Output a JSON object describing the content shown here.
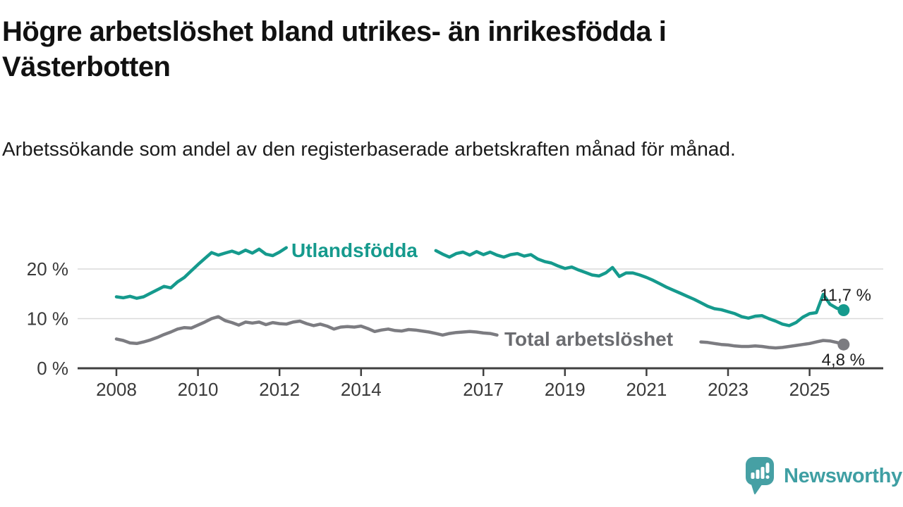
{
  "title": "Högre arbetslöshet bland utrikes- än inrikesfödda i Västerbotten",
  "subtitle": "Arbetssökande som andel av den registerbaserade arbetskraften månad för månad.",
  "branding": {
    "logo_text": "Newsworthy",
    "logo_icon": "speech-bubble-bar-chart-icon",
    "brand_color": "#3f9fa3"
  },
  "chart_data": {
    "type": "line",
    "title": "Högre arbetslöshet bland utrikes- än inrikesfödda i Västerbotten",
    "subtitle": "Arbetssökande som andel av den registerbaserade arbetskraften månad för månad.",
    "unit": "%",
    "x_start_year": 2008,
    "x_step_years": 0.1666667,
    "x_axis": {
      "ticks": [
        2008,
        2010,
        2012,
        2014,
        2017,
        2019,
        2021,
        2023,
        2025
      ],
      "range_years": [
        2007.05,
        2026.9
      ],
      "grid": false
    },
    "y_axis": {
      "tick_values": [
        0,
        10,
        20
      ],
      "tick_labels": [
        "0 %",
        "10 %",
        "20 %"
      ],
      "gridline_values": [
        10,
        20
      ],
      "range": [
        0,
        27.4
      ],
      "grid": true
    },
    "legend_position": "inline-labels-on-lines",
    "colors": {
      "axis": "#3f3f3f",
      "grid": "#dadada",
      "tick_text": "#3a3a3a",
      "value_label_text": "#1e1e1e"
    },
    "series": [
      {
        "id": "utlandsfodda",
        "name": "Utlandsfödda",
        "color": "#159a8d",
        "label_color": "#159a8d",
        "end_value": 11.7,
        "end_label": "11,7 %",
        "values": [
          14.4,
          14.2,
          14.5,
          14.1,
          14.4,
          15.1,
          15.8,
          16.5,
          16.2,
          17.4,
          18.3,
          19.6,
          20.9,
          22.1,
          23.3,
          22.8,
          23.2,
          23.6,
          23.1,
          23.8,
          23.2,
          24.0,
          23.0,
          22.7,
          23.4,
          24.3,
          null,
          null,
          null,
          null,
          null,
          null,
          null,
          null,
          null,
          null,
          null,
          null,
          null,
          null,
          null,
          null,
          null,
          null,
          null,
          null,
          null,
          23.7,
          23.0,
          22.4,
          23.1,
          23.4,
          22.8,
          23.5,
          22.9,
          23.4,
          22.8,
          22.4,
          22.9,
          23.1,
          22.6,
          22.9,
          22.0,
          21.5,
          21.2,
          20.6,
          20.1,
          20.4,
          19.8,
          19.3,
          18.8,
          18.6,
          19.2,
          20.3,
          18.5,
          19.2,
          19.2,
          18.8,
          18.3,
          17.7,
          17.0,
          16.3,
          15.7,
          15.1,
          14.5,
          13.9,
          13.2,
          12.5,
          12.0,
          11.8,
          11.4,
          11.0,
          10.4,
          10.1,
          10.5,
          10.6,
          10.0,
          9.5,
          8.9,
          8.6,
          9.2,
          10.3,
          11.0,
          11.2,
          14.9,
          12.9,
          12.1,
          11.7
        ]
      },
      {
        "id": "total-arbetsloshet",
        "name": "Total arbetslöshet",
        "color": "#7c7c81",
        "label_color": "#6b6c70",
        "end_value": 4.8,
        "end_label": "4,8 %",
        "values": [
          5.9,
          5.6,
          5.1,
          5.0,
          5.3,
          5.7,
          6.2,
          6.8,
          7.3,
          7.9,
          8.2,
          8.1,
          8.7,
          9.3,
          10.0,
          10.4,
          9.6,
          9.2,
          8.7,
          9.3,
          9.1,
          9.3,
          8.8,
          9.2,
          9.0,
          8.9,
          9.3,
          9.5,
          9.0,
          8.6,
          8.9,
          8.5,
          7.9,
          8.3,
          8.4,
          8.3,
          8.5,
          8.0,
          7.4,
          7.7,
          7.9,
          7.6,
          7.5,
          7.8,
          7.7,
          7.5,
          7.3,
          7.0,
          6.7,
          7.0,
          7.2,
          7.3,
          7.4,
          7.3,
          7.1,
          7.0,
          6.7,
          null,
          null,
          null,
          null,
          null,
          null,
          null,
          null,
          null,
          null,
          null,
          null,
          null,
          null,
          null,
          null,
          null,
          null,
          null,
          null,
          null,
          null,
          null,
          null,
          null,
          null,
          null,
          null,
          null,
          5.3,
          5.2,
          5.0,
          4.8,
          4.7,
          4.5,
          4.4,
          4.4,
          4.5,
          4.4,
          4.2,
          4.1,
          4.2,
          4.4,
          4.6,
          4.8,
          5.0,
          5.3,
          5.6,
          5.5,
          5.2,
          4.8
        ]
      }
    ]
  }
}
